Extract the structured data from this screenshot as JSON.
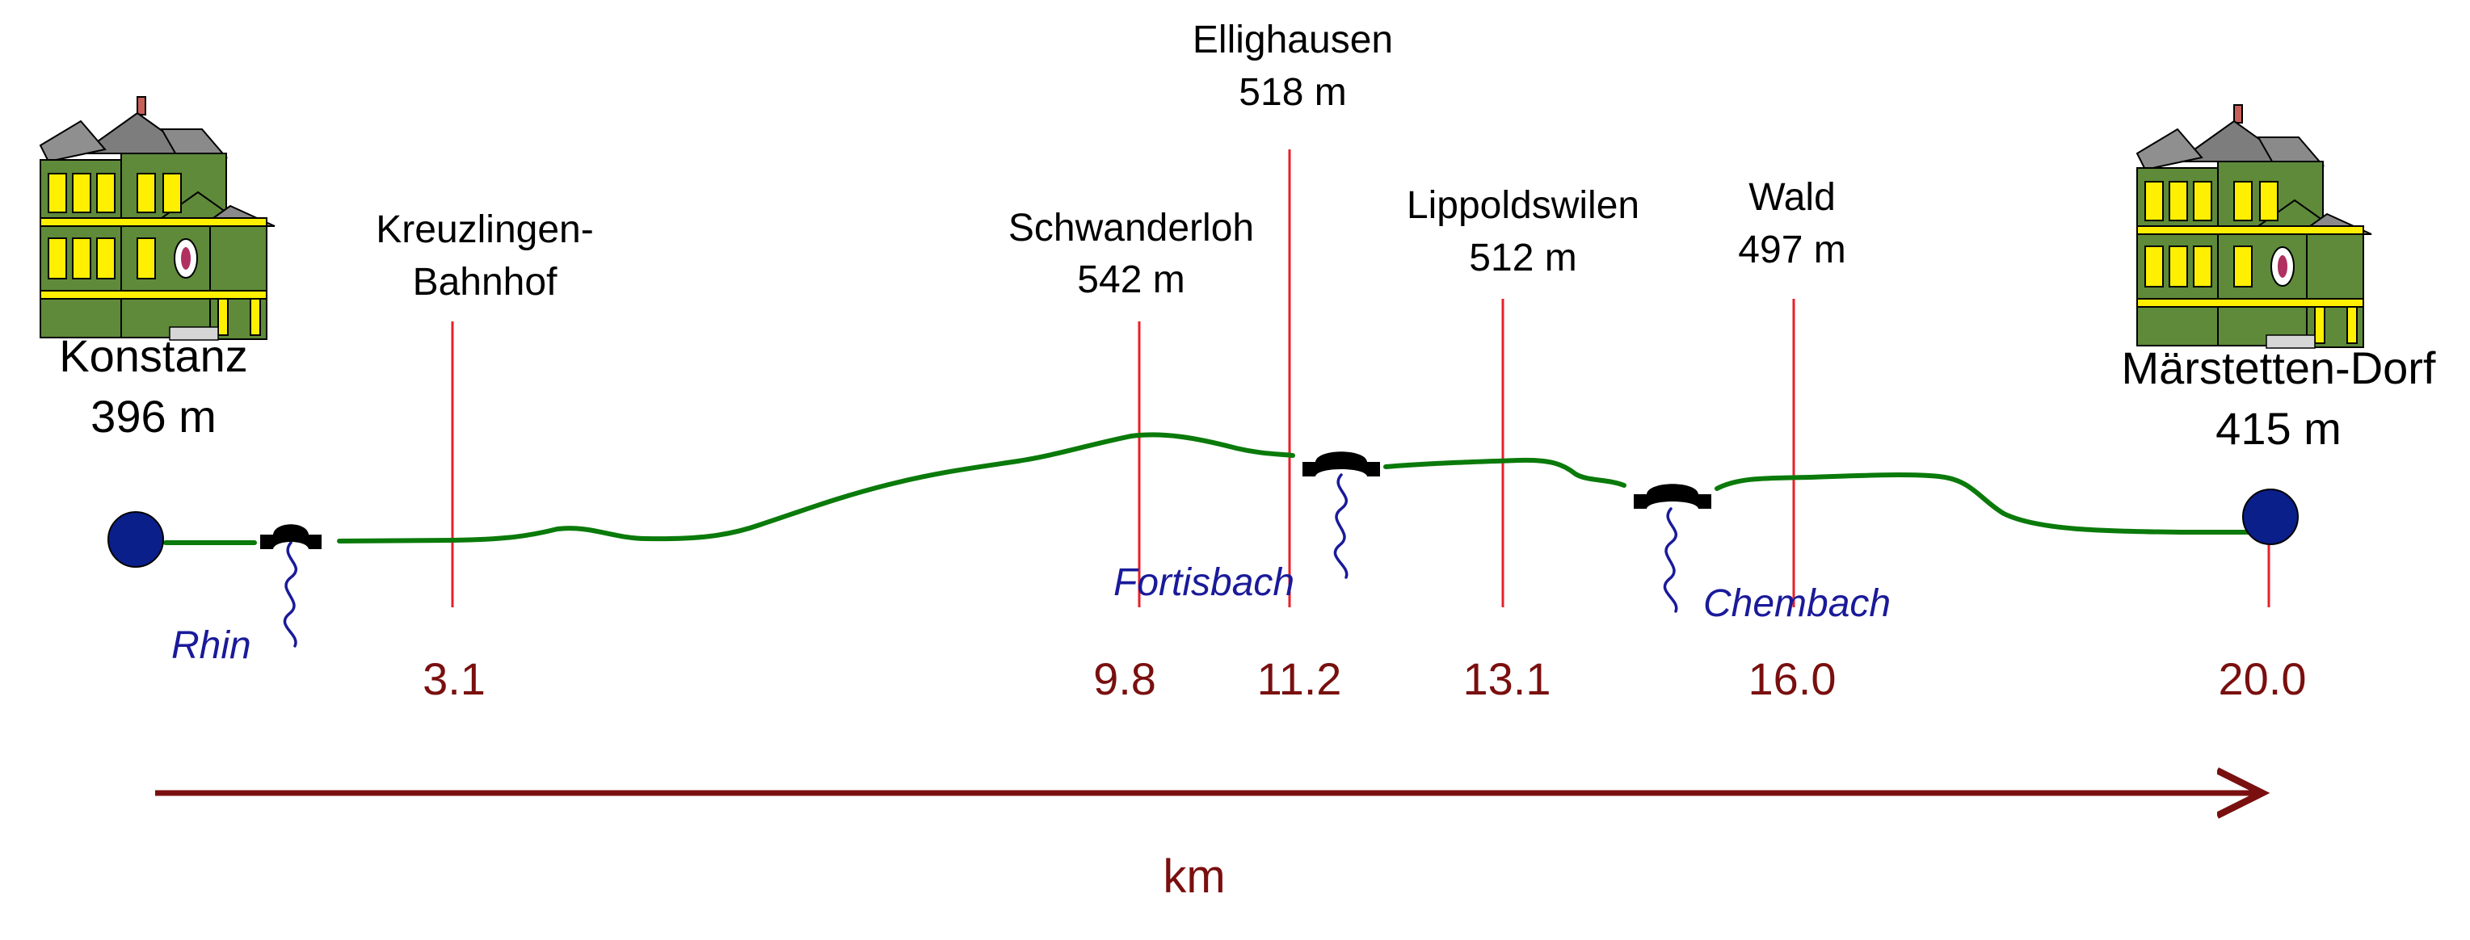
{
  "colors": {
    "route": "#0a7a0a",
    "marker": "#e8202a",
    "km_label": "#7a0f0f",
    "axis": "#7a0f0f",
    "endpoint": "#0a1f8a",
    "river": "#1a1a9a",
    "bridge": "#000000",
    "text": "#000000"
  },
  "endpoints": [
    {
      "name": "Konstanz",
      "elevation": "396 m",
      "km": 0.0,
      "icon": "house-icon"
    },
    {
      "name": "Märstetten-Dorf",
      "elevation": "415 m",
      "km": 20.0,
      "icon": "house-icon"
    }
  ],
  "stations": [
    {
      "name": "Kreuzlingen-",
      "name2": "Bahnhof",
      "elevation": "",
      "km": 3.1,
      "km_label": "3.1"
    },
    {
      "name": "Schwanderloh",
      "name2": "",
      "elevation": "542 m",
      "km": 9.8,
      "km_label": "9.8"
    },
    {
      "name": "Ellighausen",
      "name2": "",
      "elevation": "518 m",
      "km": 11.2,
      "km_label": "11.2"
    },
    {
      "name": "Lippoldswilen",
      "name2": "",
      "elevation": "512 m",
      "km": 13.1,
      "km_label": "13.1"
    },
    {
      "name": "Wald",
      "name2": "",
      "elevation": "497 m",
      "km": 16.0,
      "km_label": "16.0"
    }
  ],
  "end_km_label": "20.0",
  "rivers": [
    {
      "name": "Rhin",
      "km": 1.2
    },
    {
      "name": "Fortisbach",
      "km": 11.8
    },
    {
      "name": "Chembach",
      "km": 15.0
    }
  ],
  "axis": {
    "unit": "km",
    "range": [
      0,
      20
    ]
  }
}
